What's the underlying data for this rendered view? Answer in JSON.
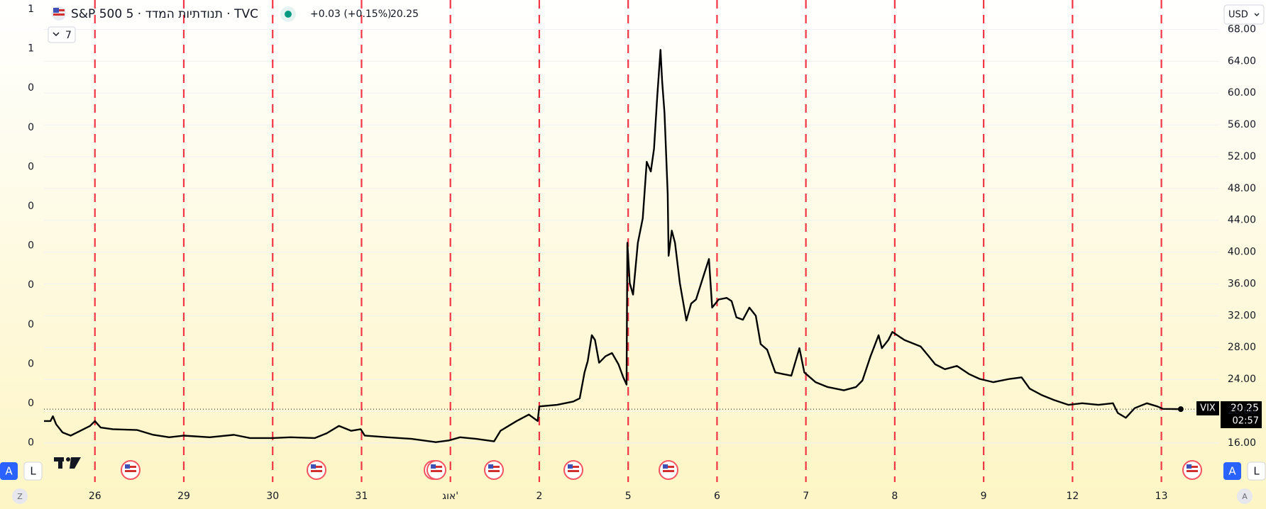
{
  "header": {
    "title": "S&P 500 תנודתיות המדד · 5 · TVC",
    "change": "+0.03 (+0.15%)",
    "interval_count": "7"
  },
  "currency": "USD",
  "countdown": "02:57",
  "buttons": {
    "auto": "A",
    "log": "L",
    "zoom": "Z"
  },
  "left_axis": {
    "labels": [
      "1",
      "1",
      "0",
      "0",
      "0",
      "0",
      "0",
      "0",
      "0",
      "0",
      "0",
      "0"
    ]
  },
  "chart_data": {
    "type": "line",
    "x": [
      -0.573,
      -0.5,
      -0.473,
      -0.436,
      -0.364,
      -0.273,
      -0.164,
      -0.055,
      0,
      0.064,
      0.2,
      0.473,
      0.655,
      0.836,
      1,
      1.291,
      1.564,
      1.745,
      2,
      2.2,
      2.473,
      2.609,
      2.745,
      2.882,
      2.991,
      3.036,
      3.291,
      3.564,
      3.836,
      3.982,
      4.109,
      4.291,
      4.491,
      4.564,
      4.745,
      4.882,
      4.982,
      5,
      5.2,
      5.382,
      5.455,
      5.509,
      5.545,
      5.591,
      5.627,
      5.673,
      5.745,
      5.818,
      5.891,
      5.945,
      5.982,
      5.991,
      6.018,
      6.055,
      6.109,
      6.164,
      6.209,
      6.255,
      6.291,
      6.327,
      6.364,
      6.382,
      6.409,
      6.445,
      6.455,
      6.491,
      6.527,
      6.582,
      6.655,
      6.709,
      6.764,
      6.836,
      6.909,
      6.945,
      7.018,
      7.109,
      7.164,
      7.218,
      7.291,
      7.364,
      7.436,
      7.491,
      7.564,
      7.655,
      7.745,
      7.836,
      7.927,
      7.982,
      8.109,
      8.245,
      8.427,
      8.564,
      8.636,
      8.727,
      8.818,
      8.855,
      8.927,
      8.973,
      9.109,
      9.291,
      9.382,
      9.455,
      9.564,
      9.7,
      9.836,
      9.955,
      10.109,
      10.291,
      10.427,
      10.518,
      10.655,
      10.791,
      10.955,
      11.109,
      11.291,
      11.455,
      11.509,
      11.6,
      11.7,
      11.836,
      11.955,
      12.018,
      12.218
    ],
    "series": [
      {
        "name": "VIX",
        "color": "#000000",
        "values": [
          18.75,
          18.75,
          19.36,
          18.34,
          17.32,
          16.92,
          17.53,
          18.14,
          18.75,
          17.94,
          17.73,
          17.63,
          17.02,
          16.71,
          16.92,
          16.71,
          17.02,
          16.61,
          16.61,
          16.71,
          16.61,
          17.22,
          18.14,
          17.53,
          17.73,
          16.92,
          16.71,
          16.51,
          16.1,
          16.31,
          16.71,
          16.51,
          16.2,
          17.53,
          18.75,
          19.57,
          18.75,
          20.59,
          20.79,
          21.2,
          21.61,
          24.87,
          26.29,
          29.55,
          28.94,
          26.09,
          26.9,
          27.31,
          25.89,
          24.25,
          23.34,
          41.17,
          36.08,
          34.65,
          41.17,
          44.23,
          51.36,
          50.14,
          52.99,
          59.52,
          65.43,
          61.55,
          57.48,
          47.29,
          39.54,
          42.7,
          41.17,
          36.08,
          31.39,
          33.53,
          34.04,
          36.59,
          39.13,
          33.02,
          34.04,
          34.24,
          33.83,
          31.8,
          31.49,
          33.02,
          32.0,
          28.43,
          27.72,
          24.87,
          24.66,
          24.46,
          27.92,
          24.87,
          23.64,
          23.03,
          22.62,
          23.03,
          23.85,
          26.9,
          29.55,
          27.92,
          28.94,
          29.96,
          28.94,
          28.13,
          26.9,
          25.89,
          25.27,
          25.68,
          24.66,
          24.05,
          23.64,
          24.05,
          24.25,
          22.83,
          22.01,
          21.4,
          20.79,
          20.99,
          20.79,
          20.99,
          19.77,
          19.16,
          20.38,
          20.99,
          20.59,
          20.28,
          20.25
        ]
      }
    ],
    "xlim": [
      -0.573,
      12.65
    ],
    "xticks": [
      {
        "value": 0,
        "label": "26"
      },
      {
        "value": 1,
        "label": "29"
      },
      {
        "value": 2,
        "label": "30"
      },
      {
        "value": 3,
        "label": "31"
      },
      {
        "value": 4,
        "label": "אוג'"
      },
      {
        "value": 5,
        "label": "2"
      },
      {
        "value": 6,
        "label": "5"
      },
      {
        "value": 7,
        "label": "6"
      },
      {
        "value": 8,
        "label": "7"
      },
      {
        "value": 9,
        "label": "8"
      },
      {
        "value": 10,
        "label": "9"
      },
      {
        "value": 11,
        "label": "12"
      },
      {
        "value": 12,
        "label": "13"
      }
    ],
    "ylim": [
      14.2,
      71.7
    ],
    "yticks": [
      {
        "value": 16,
        "label": "16.00"
      },
      {
        "value": 20,
        "label": "20.00"
      },
      {
        "value": 24,
        "label": "24.00"
      },
      {
        "value": 28,
        "label": "28.00"
      },
      {
        "value": 32,
        "label": "32.00"
      },
      {
        "value": 36,
        "label": "36.00"
      },
      {
        "value": 40,
        "label": "40.00"
      },
      {
        "value": 44,
        "label": "44.00"
      },
      {
        "value": 48,
        "label": "48.00"
      },
      {
        "value": 52,
        "label": "52.00"
      },
      {
        "value": 56,
        "label": "56.00"
      },
      {
        "value": 60,
        "label": "60.00"
      },
      {
        "value": 64,
        "label": "64.00"
      },
      {
        "value": 68,
        "label": "68.00"
      }
    ],
    "grid": true,
    "vline_color": "#f23645"
  }
}
